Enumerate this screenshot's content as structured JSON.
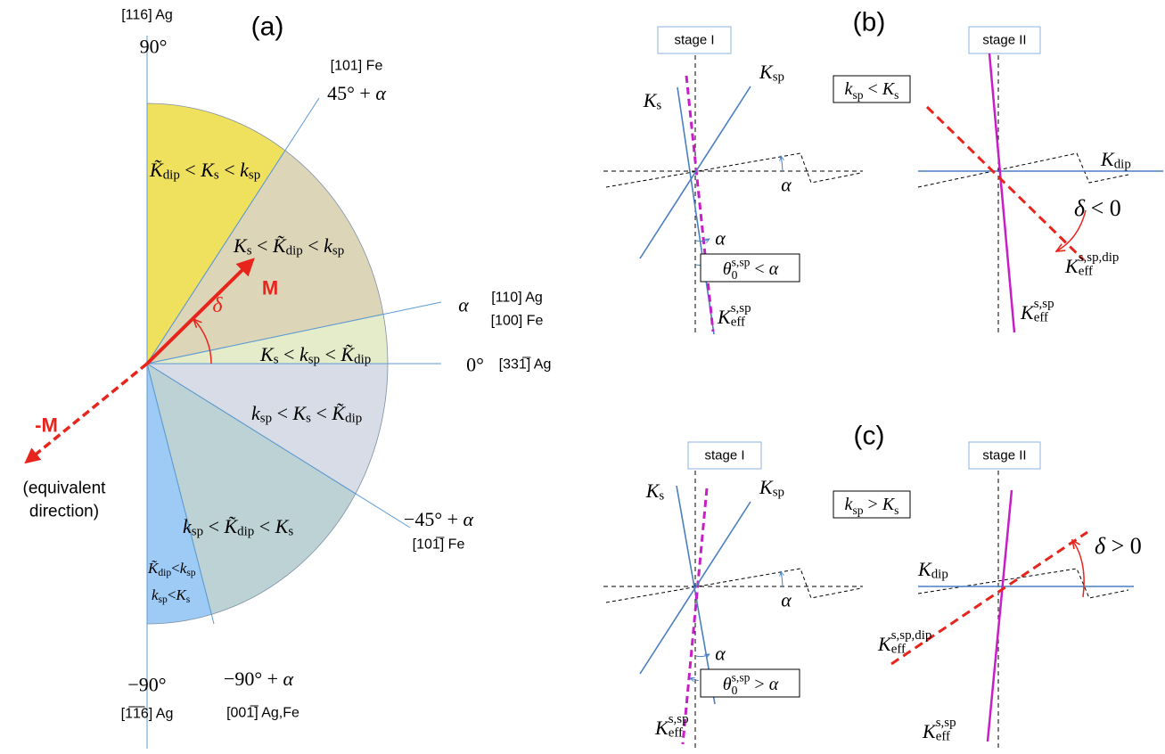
{
  "panel_a": {
    "label": "(a)",
    "top_miller": "[116] Ag",
    "top_angle": "90°",
    "fe_101": "[101] Fe",
    "angle_45_alpha": [
      "45° + ",
      "α"
    ],
    "alpha": "α",
    "ag_110": "[110] Ag",
    "fe_100": "[100] Fe",
    "zero_angle": "0°",
    "ag_331": "[331̅] Ag",
    "angle_m45_alpha": [
      "−45° + ",
      "α"
    ],
    "fe_10m1": "[101̅] Fe",
    "bottom_angle": "−90°",
    "bottom_miller": "[1̅1̅6] Ag",
    "angle_m90_alpha": [
      "−90° + ",
      "α"
    ],
    "agfe_001": "[001̅] Ag,Fe",
    "m_label": "M",
    "delta": "δ",
    "neg_m_label": "-M",
    "neg_m_note": [
      "(equivalent",
      "direction)"
    ],
    "regions": [
      [
        "K̃",
        "dip",
        " < ",
        "K",
        "s",
        " < ",
        "k",
        "sp"
      ],
      [
        "K",
        "s",
        " < ",
        "K̃",
        "dip",
        " < ",
        "k",
        "sp"
      ],
      [
        "K",
        "s",
        " < ",
        "k",
        "sp",
        " < ",
        "K̃",
        "dip"
      ],
      [
        "k",
        "sp",
        " < ",
        "K",
        "s",
        " < ",
        "K̃",
        "dip"
      ],
      [
        "k",
        "sp",
        " < ",
        "K̃",
        "dip",
        " < ",
        "K",
        "s"
      ]
    ],
    "region_narrow": [
      [
        "K̃",
        "dip",
        "<",
        "k",
        "sp"
      ],
      [
        "k",
        "sp",
        "<",
        "K",
        "s"
      ]
    ]
  },
  "panel_b": {
    "label": "(b)",
    "stage_1": "stage I",
    "stage_2": "stage II",
    "k_s": [
      "K",
      "s"
    ],
    "k_sp": [
      "K",
      "sp"
    ],
    "relation": [
      "k",
      "sp",
      " < ",
      "K",
      "s"
    ],
    "alpha_h": "α",
    "alpha_v": "α",
    "theta": [
      "θ",
      "0",
      "s,sp",
      " < ",
      "α"
    ],
    "k_eff": [
      "K",
      "eff",
      "s,sp"
    ],
    "k_dip": [
      "K",
      "dip"
    ],
    "delta": [
      "δ",
      " < 0"
    ],
    "k_eff_dip": [
      "K",
      "eff",
      "s,sp,dip"
    ]
  },
  "panel_c": {
    "label": "(c)",
    "stage_1": "stage I",
    "stage_2": "stage II",
    "k_s": [
      "K",
      "s"
    ],
    "k_sp": [
      "K",
      "sp"
    ],
    "relation": [
      "k",
      "sp",
      " > ",
      "K",
      "s"
    ],
    "alpha_h": "α",
    "alpha_v": "α",
    "theta": [
      "θ",
      "0",
      "s,sp",
      " > ",
      "α"
    ],
    "k_eff": [
      "K",
      "eff",
      "s,sp"
    ],
    "k_dip": [
      "K",
      "dip"
    ],
    "delta": [
      "δ",
      " > 0"
    ],
    "k_eff_dip": [
      "K",
      "eff",
      "s,sp,dip"
    ]
  }
}
